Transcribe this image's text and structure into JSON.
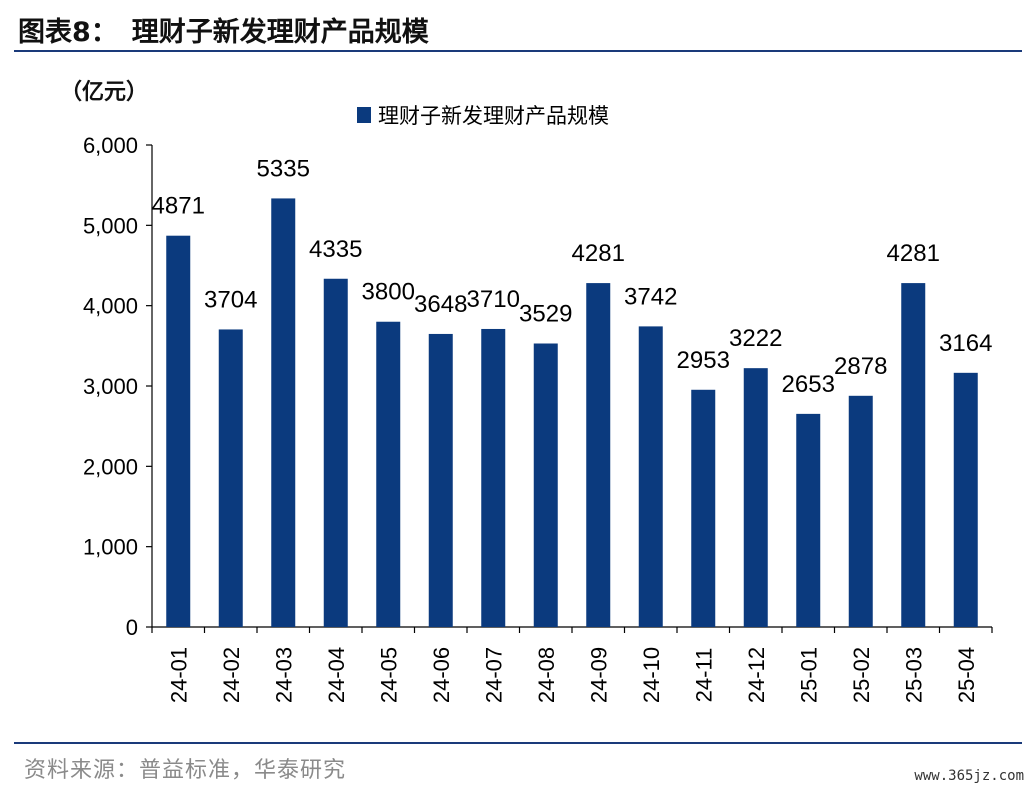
{
  "header": {
    "figure_label": "图表8：",
    "figure_title": "理财子新发理财产品规模"
  },
  "unit_label": "（亿元）",
  "source_text": "资料来源：普益标准，华泰研究",
  "watermark": "www.365jz.com",
  "chart_data": {
    "type": "bar",
    "title": "理财子新发理财产品规模",
    "ylabel": "（亿元）",
    "xlabel": "",
    "ylim": [
      0,
      6000
    ],
    "yticks": [
      0,
      1000,
      2000,
      3000,
      4000,
      5000,
      6000
    ],
    "ytick_labels": [
      "0",
      "1,000",
      "2,000",
      "3,000",
      "4,000",
      "5,000",
      "6,000"
    ],
    "categories": [
      "24-01",
      "24-02",
      "24-03",
      "24-04",
      "24-05",
      "24-06",
      "24-07",
      "24-08",
      "24-09",
      "24-10",
      "24-11",
      "24-12",
      "25-01",
      "25-02",
      "25-03",
      "25-04"
    ],
    "series": [
      {
        "name": "理财子新发理财产品规模",
        "color": "#0b3a7e",
        "values": [
          4871,
          3704,
          5335,
          4335,
          3800,
          3648,
          3710,
          3529,
          4281,
          3742,
          2953,
          3222,
          2653,
          2878,
          4281,
          3164
        ],
        "data_labels": [
          "4871",
          "3704",
          "5335",
          "4335",
          "3800",
          "3648",
          "3710",
          "3529",
          "4281",
          "3742",
          "2953",
          "3222",
          "2653",
          "2878",
          "4281",
          "3164"
        ]
      }
    ],
    "legend_position": "top-center",
    "grid": false
  }
}
